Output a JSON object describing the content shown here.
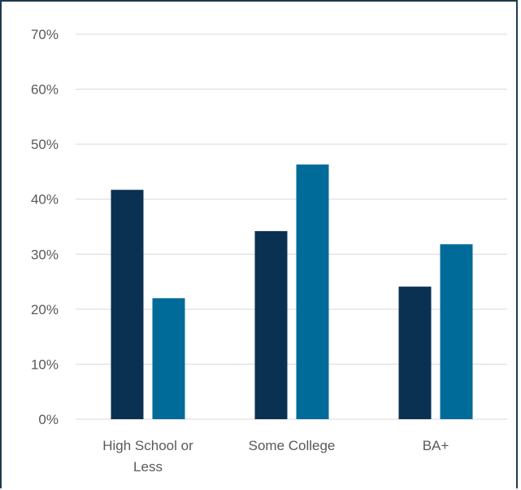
{
  "chart_data": {
    "type": "bar",
    "categories": [
      [
        "High School or",
        "Less"
      ],
      [
        "Some College"
      ],
      [
        "BA+"
      ]
    ],
    "series": [
      {
        "values": [
          41.7,
          34.2,
          24.1
        ],
        "color": "#0a3151"
      },
      {
        "values": [
          22.0,
          46.3,
          31.8
        ],
        "color": "#006a99"
      }
    ],
    "ylim": [
      0,
      70
    ],
    "y_ticks": [
      0,
      10,
      20,
      30,
      40,
      50,
      60,
      70
    ],
    "y_tick_format": "percent",
    "grid": true,
    "gridline_color": "#d9d9d9",
    "title": "",
    "xlabel": "",
    "ylabel": ""
  }
}
